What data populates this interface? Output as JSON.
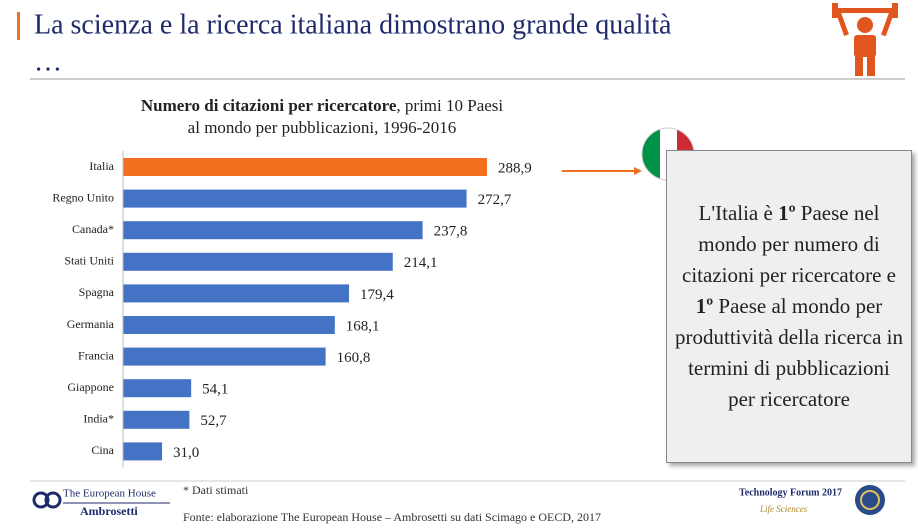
{
  "header": {
    "title": [
      "La scienza e la ricerca italiana dimostrano grande qualità",
      "…"
    ]
  },
  "chart_data": {
    "type": "bar",
    "orientation": "horizontal",
    "title": "Numero di citazioni per ricercatore",
    "subtitle": [
      ", primi 10 Paesi",
      "al mondo per pubblicazioni, 1996-2016"
    ],
    "categories": [
      "Italia",
      "Regno Unito",
      "Canada*",
      "Stati Uniti",
      "Spagna",
      "Germania",
      "Francia",
      "Giappone",
      "India*",
      "Cina"
    ],
    "values": [
      288.9,
      272.7,
      237.8,
      214.1,
      179.4,
      168.1,
      160.8,
      54.1,
      52.7,
      31.0
    ],
    "value_labels": [
      "288,9",
      "272,7",
      "237,8",
      "214,1",
      "179,4",
      "168,1",
      "160,8",
      "54,1",
      "52,7",
      "31,0"
    ],
    "colors": [
      "#f07020",
      "#4472c4",
      "#4472c4",
      "#4472c4",
      "#4472c4",
      "#4472c4",
      "#4472c4",
      "#4472c4",
      "#4472c4",
      "#4472c4"
    ]
  },
  "callout": {
    "text": [
      "L'Italia è ",
      "1º",
      " Paese nel mondo per numero di citazioni per ricercatore e ",
      "1º",
      " Paese al mondo per produttività della ricerca in termini di pubblicazioni per ricercatore"
    ]
  },
  "footer": {
    "note": "* Dati stimati",
    "source": "Fonte: elaborazione The European House – Ambrosetti su dati Scimago e OECD, 2017",
    "logo_left": [
      "The European House",
      "Ambrosetti"
    ],
    "logo_right": [
      "Technology Forum 2017",
      "Life Sciences"
    ]
  }
}
